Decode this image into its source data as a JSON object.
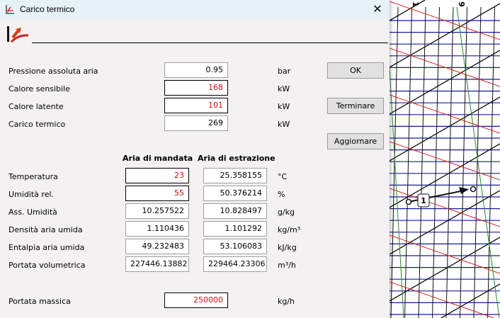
{
  "window": {
    "title": "Carico termico",
    "close_icon": "close-icon",
    "app_icon": "psychrometric-chart-icon"
  },
  "fields": [
    {
      "label": "Pressione assoluta aria",
      "value": "0.95",
      "unit": "bar",
      "editable_highlight": false
    },
    {
      "label": "Calore sensibile",
      "value": "168",
      "unit": "kW",
      "editable_highlight": true
    },
    {
      "label": "Calore latente",
      "value": "101",
      "unit": "kW",
      "editable_highlight": true
    },
    {
      "label": "Carico termico",
      "value": "269",
      "unit": "kW",
      "editable_highlight": false
    }
  ],
  "buttons": {
    "ok": "OK",
    "terminate": "Terminare",
    "update": "Aggiornare"
  },
  "table": {
    "headers": [
      "Aria di mandata",
      "Aria di estrazione"
    ],
    "rows": [
      {
        "label": "Temperatura",
        "supply": "23",
        "exhaust": "25.358155",
        "unit": "°C",
        "supply_input": true
      },
      {
        "label": "Umidità rel.",
        "supply": "55",
        "exhaust": "50.376214",
        "unit": "%",
        "supply_input": true
      },
      {
        "label": "Ass. Umidità",
        "supply": "10.257522",
        "exhaust": "10.828497",
        "unit": "g/kg",
        "supply_input": false
      },
      {
        "label": "Densità aria umida",
        "supply": "1.110436",
        "exhaust": "1.101292",
        "unit": "kg/m³",
        "supply_input": false
      },
      {
        "label": "Entalpia aria umida",
        "supply": "49.232483",
        "exhaust": "53.106083",
        "unit": "kJ/kg",
        "supply_input": false
      },
      {
        "label": "Portata volumetrica",
        "supply": "227446.13882",
        "exhaust": "229464.23306",
        "unit": "m³/h",
        "supply_input": false
      }
    ]
  },
  "mass_flow": {
    "label": "Portata massica",
    "value": "250000",
    "unit": "kg/h"
  },
  "chart": {
    "process_label": "1",
    "top_labels": [
      "1",
      "9"
    ],
    "colors": {
      "grid_h": "#1a1aa0",
      "grid_v": "#111111",
      "enthalpy": "#e02020",
      "humidity": "#2a8a2a"
    }
  }
}
